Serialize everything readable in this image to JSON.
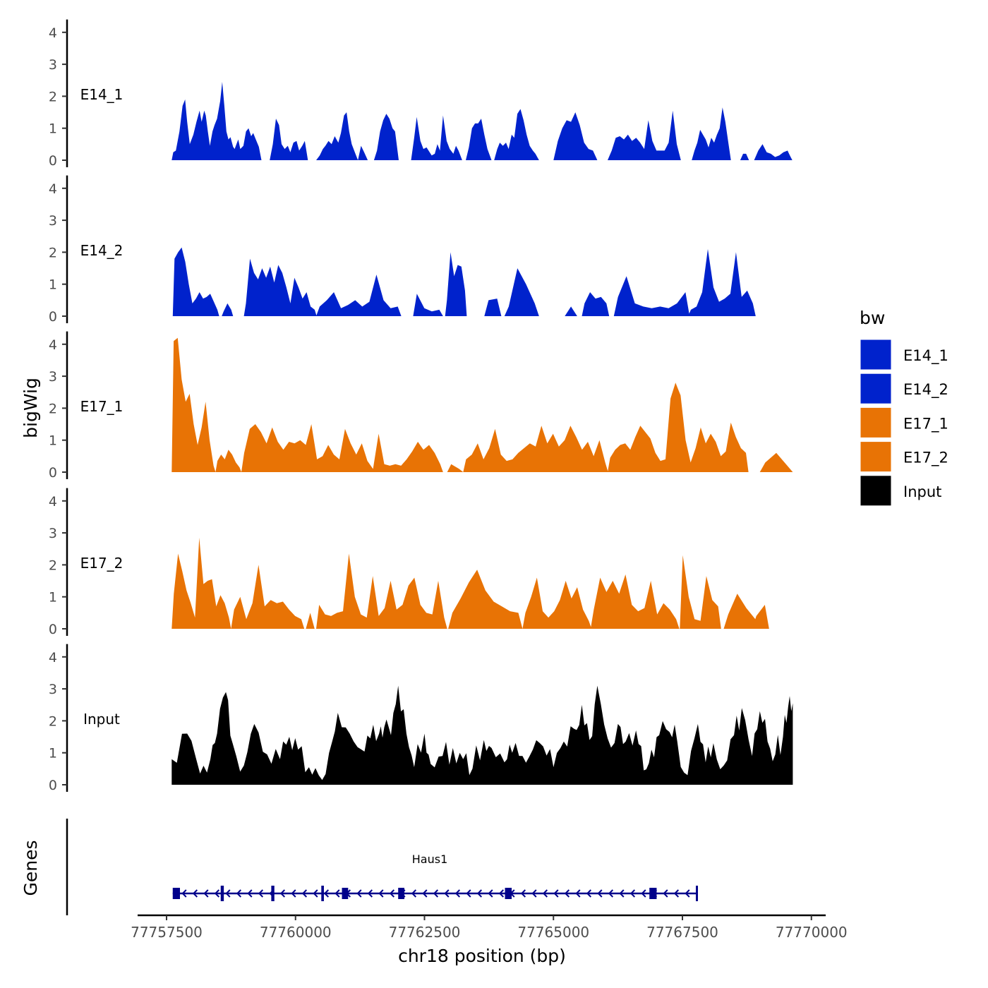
{
  "chart_data": {
    "type": "area",
    "title": "",
    "ylabel": "bigWig",
    "xlabel": "chr18 position (bp)",
    "genes_label": "Genes",
    "xlim": [
      77757100,
      77770800
    ],
    "ylim": [
      0,
      4.4
    ],
    "y_ticks": [
      0,
      1,
      2,
      3,
      4
    ],
    "y_tick_labels": [
      "0",
      "1",
      "2",
      "3",
      "4"
    ],
    "x_ticks": [
      77757500,
      77760000,
      77762500,
      77765000,
      77767500,
      77770000
    ],
    "x_tick_labels": [
      "77757500",
      "77760000",
      "77762500",
      "77765000",
      "77767500",
      "77770000"
    ],
    "legend": {
      "title": "bw",
      "position": "right",
      "entries": [
        {
          "label": "E14_1",
          "color": "#0022CC"
        },
        {
          "label": "E14_2",
          "color": "#0022CC"
        },
        {
          "label": "E17_1",
          "color": "#E87305"
        },
        {
          "label": "E17_2",
          "color": "#E87305"
        },
        {
          "label": "Input",
          "color": "#000000"
        }
      ]
    },
    "series": [
      {
        "name": "E14_1",
        "color": "#0022CC",
        "points": [
          [
            77757600,
            0
          ],
          [
            77757630,
            0.25
          ],
          [
            77757680,
            0.3
          ],
          [
            77757750,
            0.9
          ],
          [
            77757810,
            1.7
          ],
          [
            77757860,
            1.9
          ],
          [
            77757900,
            1.2
          ],
          [
            77757950,
            0.5
          ],
          [
            77758020,
            0.8
          ],
          [
            77758080,
            1.2
          ],
          [
            77758140,
            1.55
          ],
          [
            77758180,
            1.2
          ],
          [
            77758230,
            1.55
          ],
          [
            77758260,
            1.4
          ],
          [
            77758300,
            0.9
          ],
          [
            77758340,
            0.45
          ],
          [
            77758390,
            0.9
          ],
          [
            77758430,
            1.1
          ],
          [
            77758480,
            1.3
          ],
          [
            77758540,
            1.85
          ],
          [
            77758580,
            2.45
          ],
          [
            77758620,
            1.7
          ],
          [
            77758660,
            0.9
          ],
          [
            77758700,
            0.65
          ],
          [
            77758740,
            0.72
          ],
          [
            77758790,
            0.42
          ],
          [
            77758820,
            0.35
          ],
          [
            77758860,
            0.52
          ],
          [
            77758890,
            0.65
          ],
          [
            77758930,
            0.35
          ],
          [
            77758990,
            0.45
          ],
          [
            77759040,
            0.9
          ],
          [
            77759090,
            1.0
          ],
          [
            77759140,
            0.75
          ],
          [
            77759180,
            0.85
          ],
          [
            77759230,
            0.65
          ],
          [
            77759290,
            0.42
          ],
          [
            77759340,
            0.0
          ]
        ],
        "segments_break_at": [
          77759340,
          77759500,
          77760240,
          77760400,
          77761520,
          77761620,
          77762800,
          77763060,
          77765850,
          77766050,
          77767470,
          77767680,
          77768440,
          77768620,
          77768790,
          77768890
        ]
      }
    ],
    "genes": [
      {
        "name": "Haus1",
        "start": 77757620,
        "end": 77767800,
        "strand": "-",
        "exons": [
          [
            77757620,
            77757760
          ],
          [
            77758550,
            77758610
          ],
          [
            77759530,
            77759590
          ],
          [
            77760500,
            77760550
          ],
          [
            77760900,
            77761020
          ],
          [
            77761990,
            77762110
          ],
          [
            77764060,
            77764190
          ],
          [
            77766860,
            77767000
          ],
          [
            77767760,
            77767800
          ]
        ]
      }
    ]
  }
}
